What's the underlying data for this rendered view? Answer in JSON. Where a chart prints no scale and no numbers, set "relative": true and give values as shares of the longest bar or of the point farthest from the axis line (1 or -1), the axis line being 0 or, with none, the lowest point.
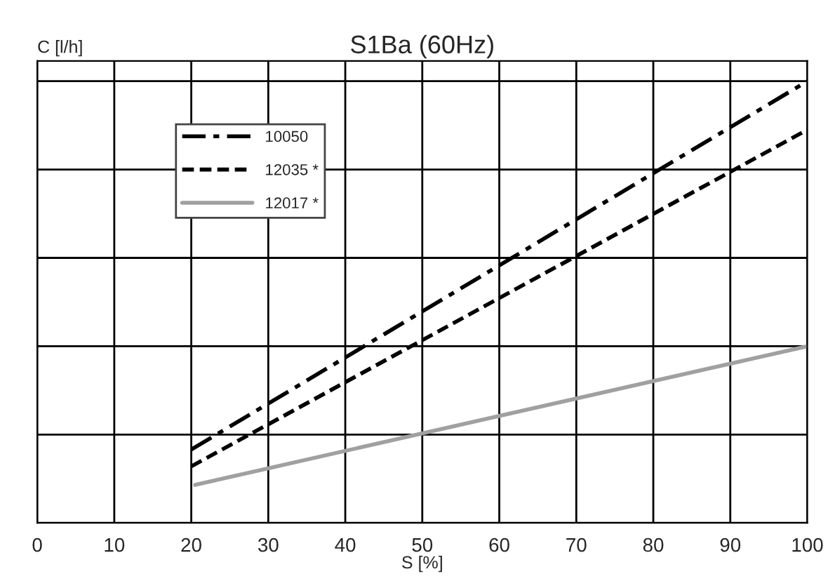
{
  "chart_data": {
    "type": "line",
    "title": "S1Ba (60Hz)",
    "xlabel": "S [%]",
    "ylabel": "C [l/h]",
    "relative": true,
    "xlim": [
      0,
      100
    ],
    "xticks": [
      0,
      10,
      20,
      30,
      40,
      50,
      60,
      70,
      80,
      90,
      100
    ],
    "grid": true,
    "legend": "top left",
    "marker": "none",
    "series": [
      {
        "name": "10050",
        "color": "#000000",
        "line_style": "dashdot",
        "x": [
          20,
          100
        ],
        "values": [
          0.166,
          1
        ]
      },
      {
        "name": "12035 *",
        "color": "#000000",
        "line_style": "dashed",
        "x": [
          20,
          100
        ],
        "values": [
          0.128,
          0.89
        ]
      },
      {
        "name": "12017 *",
        "color": "#a0a0a0",
        "line_style": "solid",
        "x": [
          20.5,
          100
        ],
        "values": [
          0.086,
          0.4
        ]
      }
    ]
  }
}
